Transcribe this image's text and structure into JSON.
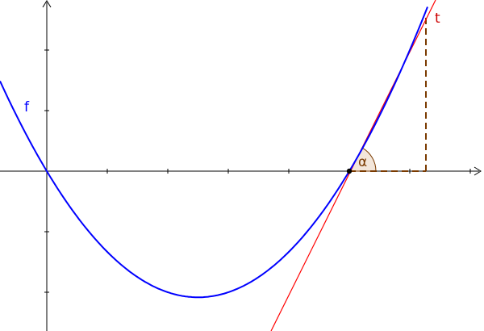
{
  "labels": {
    "curve": "f",
    "tangent": "t",
    "angle": "α"
  },
  "colors": {
    "curve": "#0000ff",
    "tangent": "#ff0000",
    "tangent_label": "#cc0000",
    "angle": "#7a3a00",
    "angle_fill": "#f3e6da",
    "axis": "#000000",
    "point": "#000000"
  }
}
